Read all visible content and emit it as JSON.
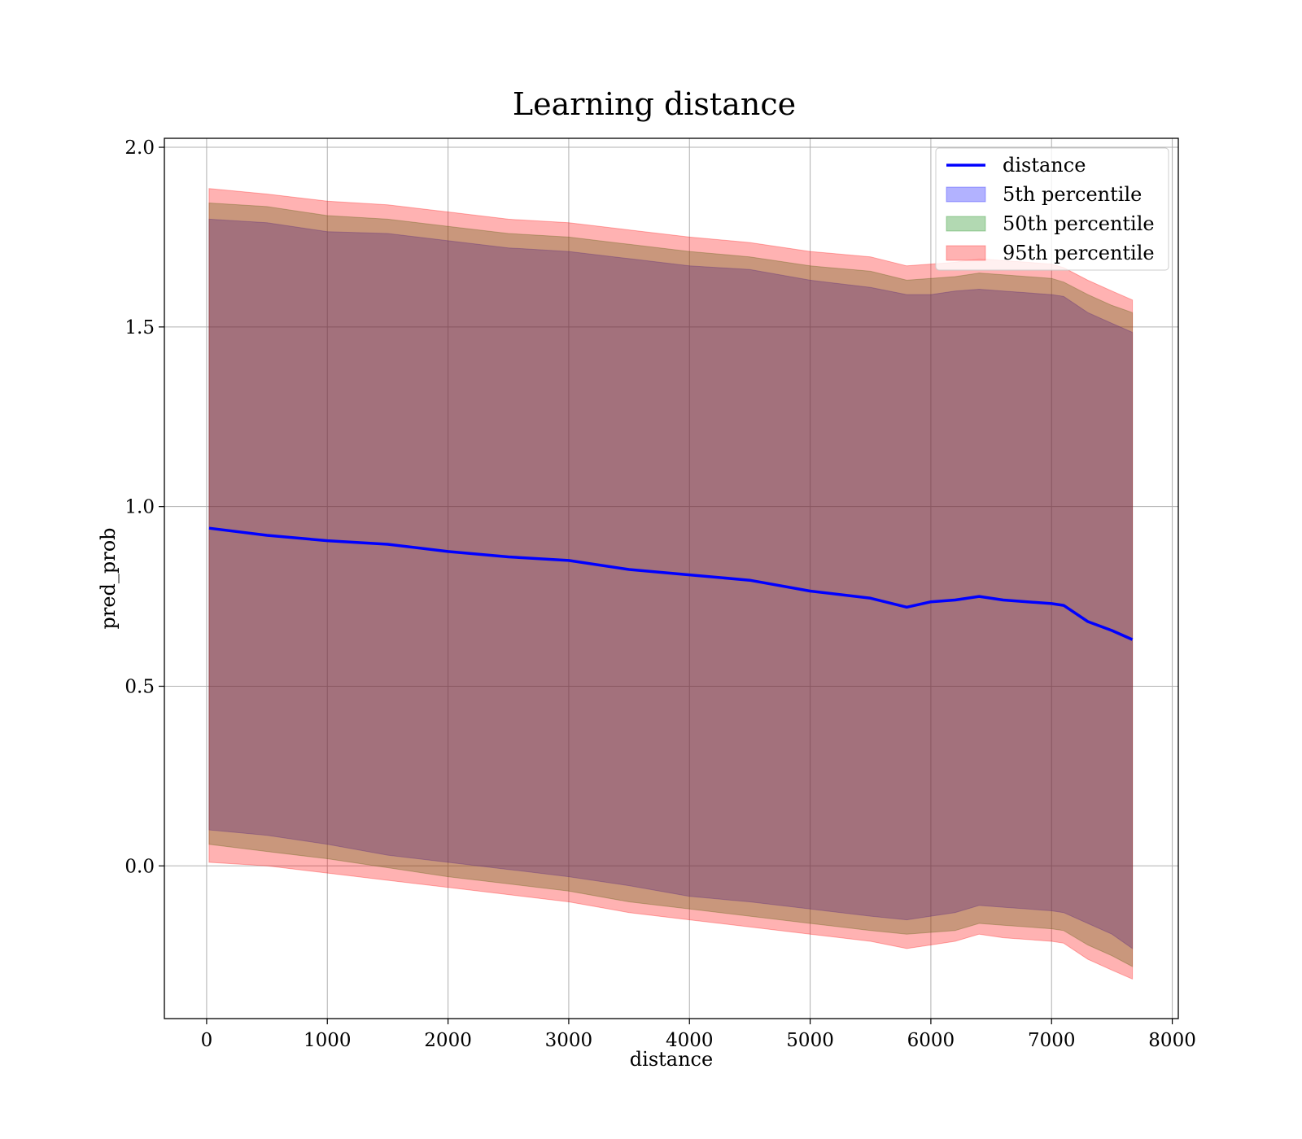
{
  "chart_data": {
    "type": "line",
    "title": "Learning distance",
    "xlabel": "distance",
    "ylabel": "pred_prob",
    "xlim": [
      -350,
      8050
    ],
    "ylim": [
      -0.425,
      2.025
    ],
    "xticks": [
      0,
      1000,
      2000,
      3000,
      4000,
      5000,
      6000,
      7000,
      8000
    ],
    "xtick_labels": [
      "0",
      "1000",
      "2000",
      "3000",
      "4000",
      "5000",
      "6000",
      "7000",
      "8000"
    ],
    "yticks": [
      0.0,
      0.5,
      1.0,
      1.5,
      2.0
    ],
    "ytick_labels": [
      "0.0",
      "0.5",
      "1.0",
      "1.5",
      "2.0"
    ],
    "grid": true,
    "legend_position": "top-right",
    "x": [
      20,
      500,
      1000,
      1500,
      2000,
      2500,
      3000,
      3500,
      4000,
      4500,
      5000,
      5500,
      5800,
      6000,
      6200,
      6400,
      6600,
      6800,
      7000,
      7100,
      7300,
      7500,
      7670
    ],
    "series": [
      {
        "name": "distance",
        "kind": "line",
        "color": "#0000ff",
        "values": [
          0.94,
          0.92,
          0.905,
          0.895,
          0.875,
          0.86,
          0.85,
          0.825,
          0.81,
          0.795,
          0.765,
          0.745,
          0.72,
          0.735,
          0.74,
          0.75,
          0.74,
          0.735,
          0.73,
          0.725,
          0.68,
          0.655,
          0.63
        ]
      },
      {
        "name": "5th percentile",
        "kind": "band",
        "color": "#0000ff",
        "lower": [
          0.1,
          0.085,
          0.06,
          0.03,
          0.01,
          -0.01,
          -0.03,
          -0.055,
          -0.085,
          -0.1,
          -0.12,
          -0.14,
          -0.15,
          -0.14,
          -0.13,
          -0.11,
          -0.115,
          -0.12,
          -0.125,
          -0.13,
          -0.16,
          -0.19,
          -0.23
        ],
        "upper": [
          1.8,
          1.79,
          1.765,
          1.76,
          1.74,
          1.72,
          1.71,
          1.69,
          1.67,
          1.66,
          1.63,
          1.61,
          1.59,
          1.59,
          1.6,
          1.605,
          1.6,
          1.595,
          1.59,
          1.585,
          1.54,
          1.51,
          1.485
        ]
      },
      {
        "name": "50th percentile",
        "kind": "band",
        "color": "#008000",
        "lower": [
          0.06,
          0.04,
          0.02,
          -0.005,
          -0.03,
          -0.05,
          -0.07,
          -0.1,
          -0.12,
          -0.14,
          -0.16,
          -0.18,
          -0.19,
          -0.185,
          -0.18,
          -0.16,
          -0.165,
          -0.17,
          -0.175,
          -0.18,
          -0.22,
          -0.25,
          -0.28
        ],
        "upper": [
          1.845,
          1.835,
          1.81,
          1.8,
          1.78,
          1.76,
          1.75,
          1.73,
          1.71,
          1.695,
          1.67,
          1.655,
          1.63,
          1.635,
          1.64,
          1.65,
          1.645,
          1.64,
          1.635,
          1.625,
          1.59,
          1.56,
          1.54
        ]
      },
      {
        "name": "95th percentile",
        "kind": "band",
        "color": "#ff0000",
        "lower": [
          0.01,
          0.0,
          -0.02,
          -0.04,
          -0.06,
          -0.08,
          -0.1,
          -0.13,
          -0.15,
          -0.17,
          -0.19,
          -0.21,
          -0.23,
          -0.22,
          -0.21,
          -0.19,
          -0.2,
          -0.205,
          -0.21,
          -0.215,
          -0.26,
          -0.29,
          -0.315
        ],
        "upper": [
          1.885,
          1.87,
          1.85,
          1.84,
          1.82,
          1.8,
          1.79,
          1.77,
          1.75,
          1.735,
          1.71,
          1.695,
          1.67,
          1.675,
          1.68,
          1.69,
          1.685,
          1.68,
          1.675,
          1.665,
          1.63,
          1.6,
          1.575
        ]
      }
    ]
  }
}
